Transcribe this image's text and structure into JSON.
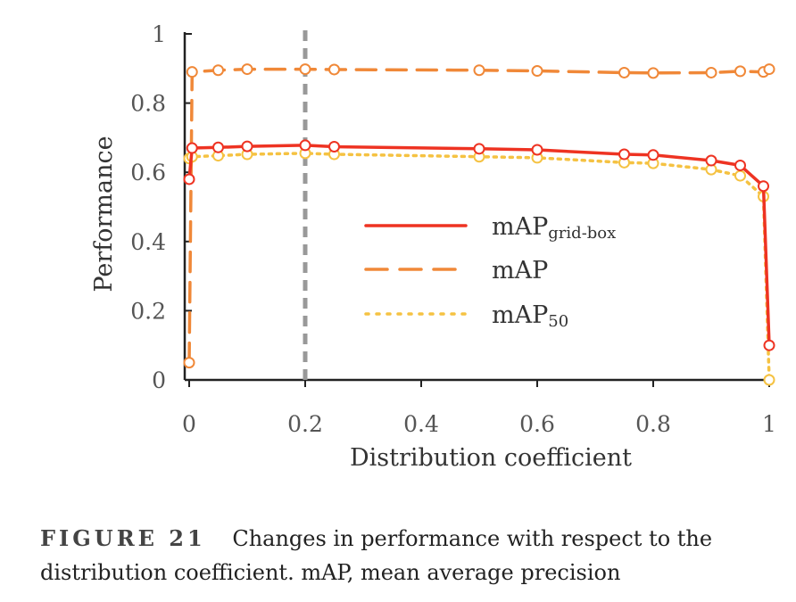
{
  "chart_data": {
    "type": "line",
    "xlabel": "Distribution coefficient",
    "ylabel": "Performance",
    "xlim": [
      0,
      1
    ],
    "ylim": [
      0,
      1
    ],
    "x_ticks": [
      "0",
      "0.2",
      "0.4",
      "0.6",
      "0.8",
      "1"
    ],
    "y_ticks": [
      "0",
      "0.2",
      "0.4",
      "0.6",
      "0.8",
      "1"
    ],
    "reference_line_x": 0.2,
    "legend": {
      "placement": "center-right"
    },
    "series": [
      {
        "name": "mAPgrid-box",
        "label_main": "mAP",
        "label_sub": "grid-box",
        "style": "solid",
        "color": "#ee3322",
        "x": [
          0,
          0.005,
          0.05,
          0.1,
          0.2,
          0.25,
          0.5,
          0.6,
          0.75,
          0.8,
          0.9,
          0.95,
          0.99,
          1.0
        ],
        "values": [
          0.58,
          0.67,
          0.672,
          0.675,
          0.678,
          0.674,
          0.668,
          0.665,
          0.652,
          0.65,
          0.634,
          0.62,
          0.56,
          0.1
        ]
      },
      {
        "name": "mAP",
        "label_main": "mAP",
        "label_sub": "",
        "style": "dashed",
        "color": "#f08838",
        "x": [
          0,
          0.005,
          0.05,
          0.1,
          0.2,
          0.25,
          0.5,
          0.6,
          0.75,
          0.8,
          0.9,
          0.95,
          0.99,
          1.0
        ],
        "values": [
          0.05,
          0.89,
          0.895,
          0.898,
          0.898,
          0.897,
          0.895,
          0.893,
          0.888,
          0.887,
          0.888,
          0.892,
          0.89,
          0.898
        ]
      },
      {
        "name": "mAP50",
        "label_main": "mAP",
        "label_sub": "50",
        "style": "dotted",
        "color": "#f5c242",
        "x": [
          0,
          0.005,
          0.05,
          0.1,
          0.2,
          0.25,
          0.5,
          0.6,
          0.75,
          0.8,
          0.9,
          0.95,
          0.99,
          1.0
        ],
        "values": [
          0.64,
          0.645,
          0.648,
          0.652,
          0.655,
          0.652,
          0.645,
          0.642,
          0.628,
          0.626,
          0.608,
          0.59,
          0.53,
          0.0
        ]
      }
    ]
  },
  "caption": {
    "label": "FIGURE 21",
    "text": "Changes in performance with respect to the distribution coefficient. mAP, mean average precision"
  }
}
